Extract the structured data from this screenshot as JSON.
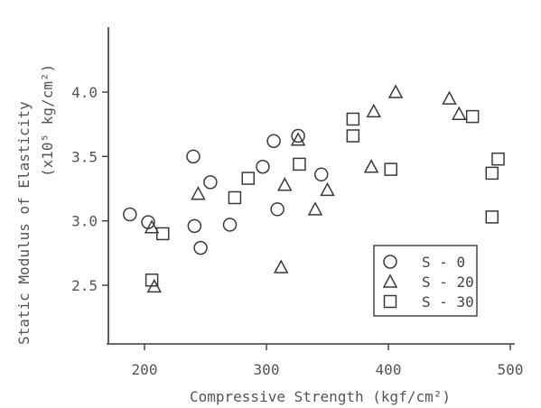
{
  "chart_data": {
    "type": "scatter",
    "xlabel": "Compressive Strength (kgf/cm²)",
    "ylabel": "Static Modulus of Elasticity",
    "ylabel_unit": "(x10⁵ kg/cm²)",
    "xlim": [
      175,
      500
    ],
    "ylim": [
      2.25,
      4.4
    ],
    "xticks": [
      200,
      300,
      400,
      500
    ],
    "yticks": [
      2.5,
      3.0,
      3.5,
      4.0
    ],
    "xtick_labels": [
      "200",
      "300",
      "400",
      "500"
    ],
    "ytick_labels": [
      "2.5",
      "3.0",
      "3.5",
      "4.0"
    ],
    "grid": false,
    "legend_position": "bottom-right",
    "series": [
      {
        "name": "S - 0",
        "marker": "circle",
        "points": [
          {
            "x": 188,
            "y": 3.05
          },
          {
            "x": 203,
            "y": 2.99
          },
          {
            "x": 240,
            "y": 3.5
          },
          {
            "x": 241,
            "y": 2.96
          },
          {
            "x": 246,
            "y": 2.79
          },
          {
            "x": 254,
            "y": 3.3
          },
          {
            "x": 270,
            "y": 2.97
          },
          {
            "x": 297,
            "y": 3.42
          },
          {
            "x": 306,
            "y": 3.62
          },
          {
            "x": 309,
            "y": 3.09
          },
          {
            "x": 326,
            "y": 3.66
          },
          {
            "x": 345,
            "y": 3.36
          }
        ]
      },
      {
        "name": "S - 20",
        "marker": "triangle",
        "points": [
          {
            "x": 206,
            "y": 2.95
          },
          {
            "x": 208,
            "y": 2.49
          },
          {
            "x": 244,
            "y": 3.21
          },
          {
            "x": 312,
            "y": 2.64
          },
          {
            "x": 315,
            "y": 3.28
          },
          {
            "x": 326,
            "y": 3.63
          },
          {
            "x": 340,
            "y": 3.09
          },
          {
            "x": 350,
            "y": 3.24
          },
          {
            "x": 386,
            "y": 3.42
          },
          {
            "x": 388,
            "y": 3.85
          },
          {
            "x": 406,
            "y": 4.0
          },
          {
            "x": 450,
            "y": 3.95
          },
          {
            "x": 458,
            "y": 3.83
          }
        ]
      },
      {
        "name": "S - 30",
        "marker": "square",
        "points": [
          {
            "x": 206,
            "y": 2.54
          },
          {
            "x": 215,
            "y": 2.9
          },
          {
            "x": 274,
            "y": 3.18
          },
          {
            "x": 285,
            "y": 3.33
          },
          {
            "x": 327,
            "y": 3.44
          },
          {
            "x": 371,
            "y": 3.79
          },
          {
            "x": 371,
            "y": 3.66
          },
          {
            "x": 402,
            "y": 3.4
          },
          {
            "x": 469,
            "y": 3.81
          },
          {
            "x": 485,
            "y": 3.37
          },
          {
            "x": 485,
            "y": 3.03
          },
          {
            "x": 490,
            "y": 3.48
          }
        ]
      }
    ]
  }
}
